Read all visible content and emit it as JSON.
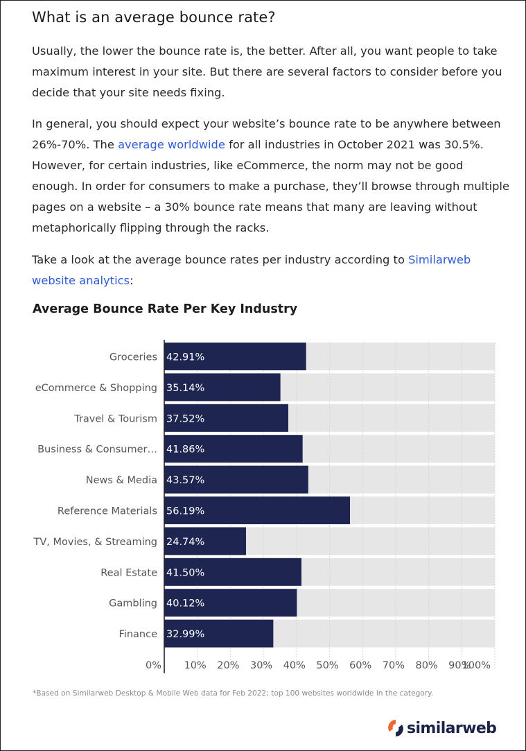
{
  "article": {
    "heading": "What is an average bounce rate?",
    "p1": "Usually, the lower the bounce rate is, the better. After all, you want people to take maximum interest in your site. But there are several factors to consider before you decide that your site needs fixing.",
    "p2_before": "In general, you should expect your website’s bounce rate to be anywhere between 26%-70%. The ",
    "p2_link": "average worldwide",
    "p2_after": " for all industries in October 2021 was 30.5%. However, for certain industries, like eCommerce, the norm may not be good enough. In order for consumers to make a purchase, they’ll browse through multiple pages on a website – a 30% bounce rate means that many are leaving without metaphorically flipping through the racks.",
    "p3_before": "Take a look at the average bounce rates per industry according to ",
    "p3_link": "Similarweb website analytics",
    "p3_after": ":"
  },
  "chart_data": {
    "type": "bar",
    "orientation": "horizontal",
    "title": "Average Bounce Rate Per Key Industry",
    "categories": [
      "Groceries",
      "eCommerce & Shopping",
      "Travel & Tourism",
      "Business & Consumer…",
      "News & Media",
      "Reference Materials",
      "TV, Movies, & Streaming",
      "Real Estate",
      "Gambling",
      "Finance"
    ],
    "values": [
      42.91,
      35.14,
      37.52,
      41.86,
      43.57,
      56.19,
      24.74,
      41.5,
      40.12,
      32.99
    ],
    "value_labels": [
      "42.91%",
      "35.14%",
      "37.52%",
      "41.86%",
      "43.57%",
      "56.19%",
      "24.74%",
      "41.50%",
      "40.12%",
      "32.99%"
    ],
    "xlim": [
      0,
      100
    ],
    "x_ticks": [
      "0%",
      "10%",
      "20%",
      "30%",
      "40%",
      "50%",
      "60%",
      "70%",
      "80%",
      "90%",
      "100%"
    ],
    "grid": true,
    "colors": {
      "bar": "#1e2550",
      "track": "#e6e6e6",
      "grid": "#d6d6d6",
      "label": "#555555",
      "value_label": "#ffffff"
    }
  },
  "footnote": "*Based on Similarweb Desktop & Mobile Web data for Feb 2022; top 100 websites worldwide in the category.",
  "logo": {
    "text": "similarweb",
    "icon": "similarweb-logo-icon",
    "colors": {
      "orange": "#f0662f",
      "navy": "#1b2346"
    }
  }
}
